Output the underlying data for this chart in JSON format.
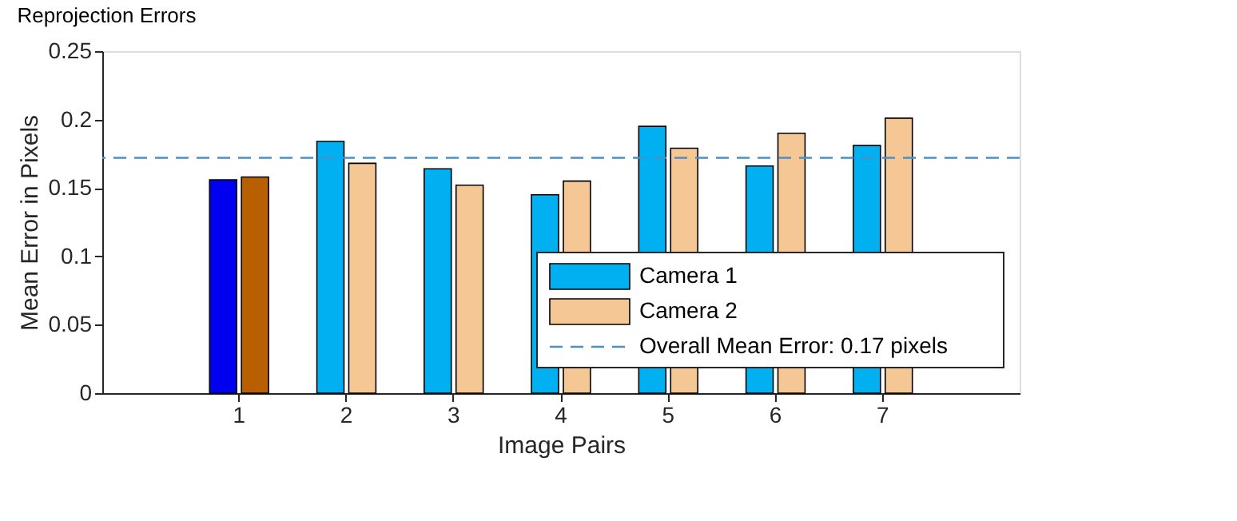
{
  "chart_data": {
    "type": "bar",
    "title": "Reprojection Errors",
    "xlabel": "Image Pairs",
    "ylabel": "Mean Error in Pixels",
    "categories": [
      "1",
      "2",
      "3",
      "4",
      "5",
      "6",
      "7"
    ],
    "series": [
      {
        "name": "Camera 1",
        "color": "#00b0f0",
        "colors": [
          "#0000f0",
          "#00b0f0",
          "#00b0f0",
          "#00b0f0",
          "#00b0f0",
          "#00b0f0",
          "#00b0f0"
        ],
        "values": [
          0.156,
          0.184,
          0.164,
          0.145,
          0.195,
          0.166,
          0.181
        ]
      },
      {
        "name": "Camera 2",
        "color": "#f5c795",
        "colors": [
          "#b86000",
          "#f5c795",
          "#f5c795",
          "#f5c795",
          "#f5c795",
          "#f5c795",
          "#f5c795"
        ],
        "values": [
          0.158,
          0.168,
          0.152,
          0.155,
          0.179,
          0.19,
          0.201
        ]
      }
    ],
    "ylim": [
      0,
      0.25
    ],
    "yticks": [
      0,
      0.05,
      0.1,
      0.15,
      0.2,
      0.25
    ],
    "ref_lines": [
      {
        "axis": "y",
        "value": 0.172,
        "label": "Overall Mean Error: 0.17 pixels",
        "color": "#4a90c8",
        "line_style": "dashed"
      }
    ],
    "grid": false,
    "legend": "bottom right"
  }
}
